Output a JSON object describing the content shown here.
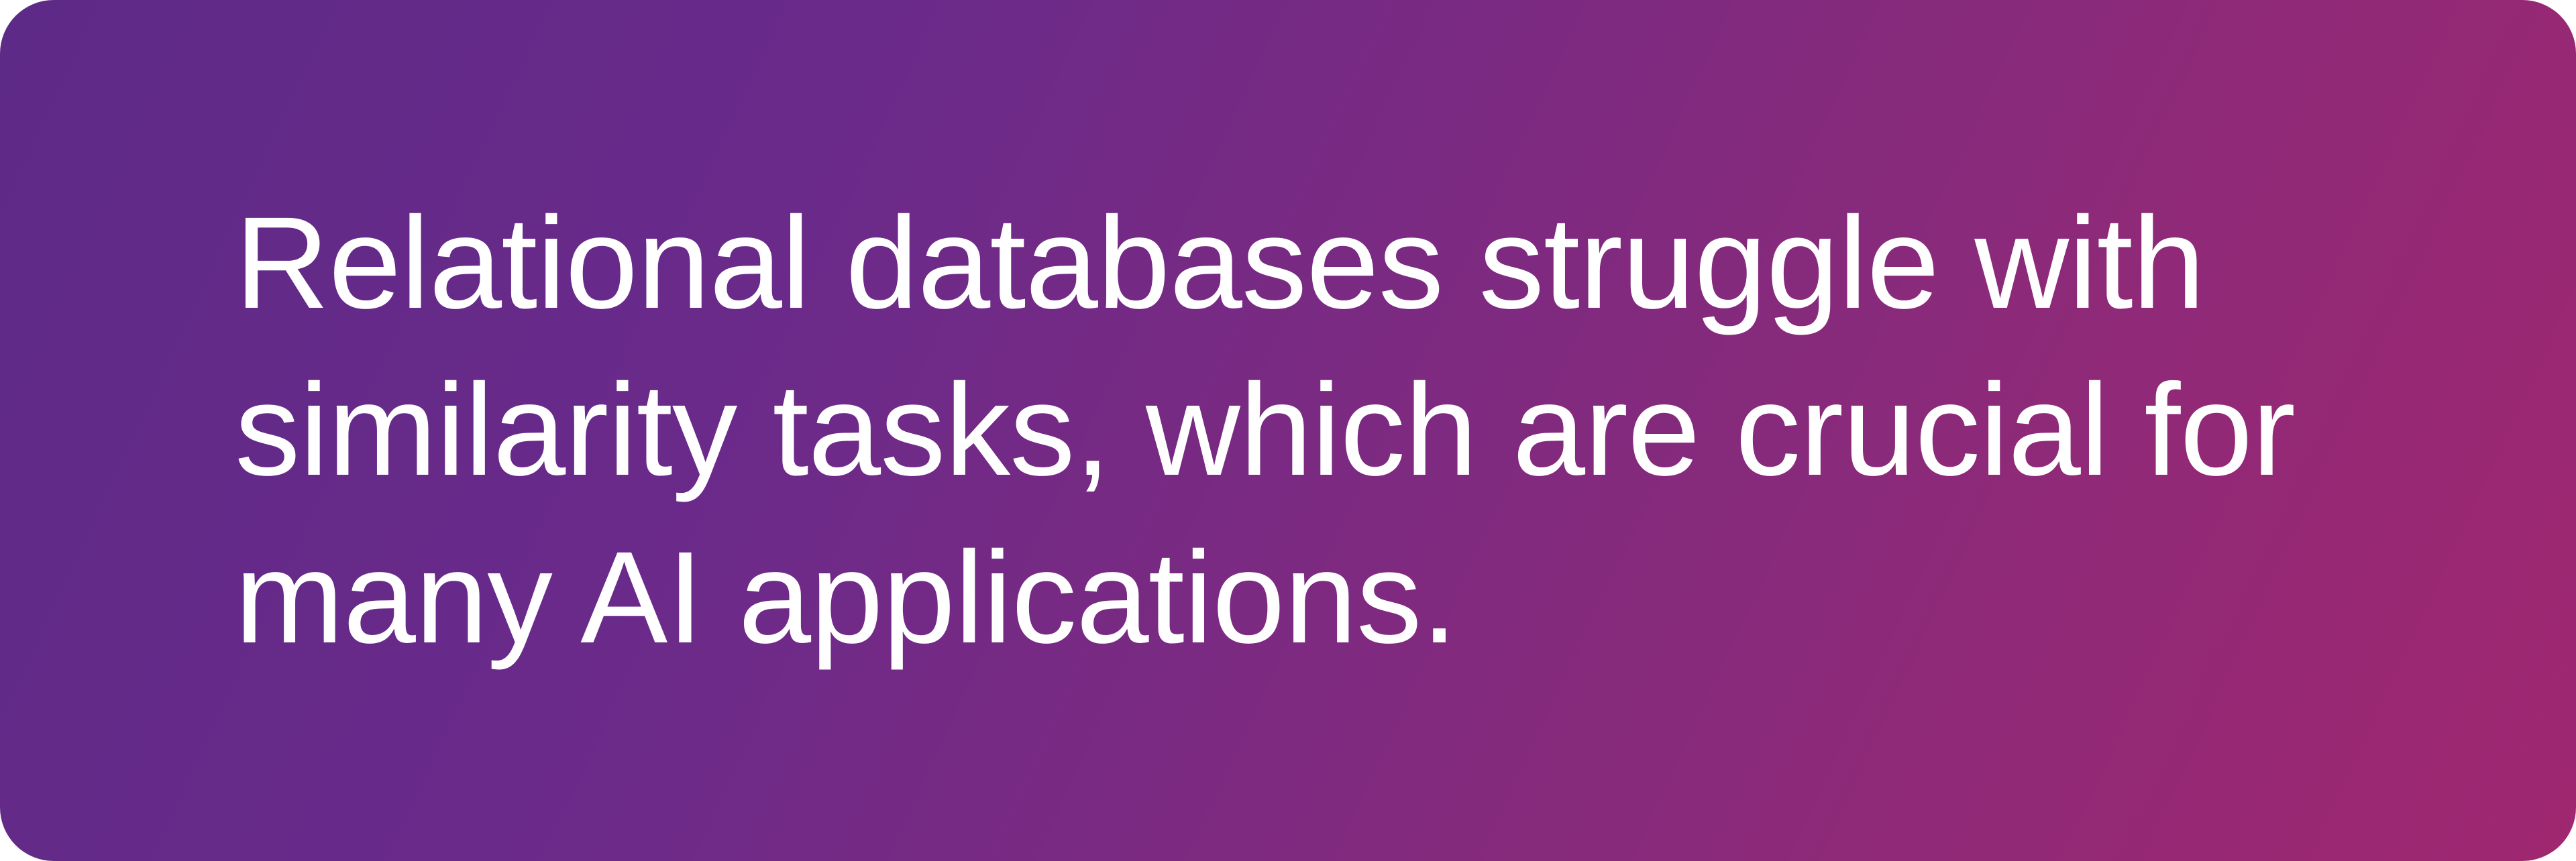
{
  "card": {
    "text": "Relational databases struggle with similarity tasks, which are crucial for many AI applications.",
    "text_color": "#ffffff",
    "background_gradient_start": "#5e2a87",
    "background_gradient_mid1": "#6a2a8a",
    "background_gradient_mid2": "#8a2a7a",
    "background_gradient_end": "#a02770",
    "border_radius": 80,
    "font_size": 195,
    "font_weight": 400,
    "line_height": 1.28,
    "padding_horizontal": 350
  }
}
